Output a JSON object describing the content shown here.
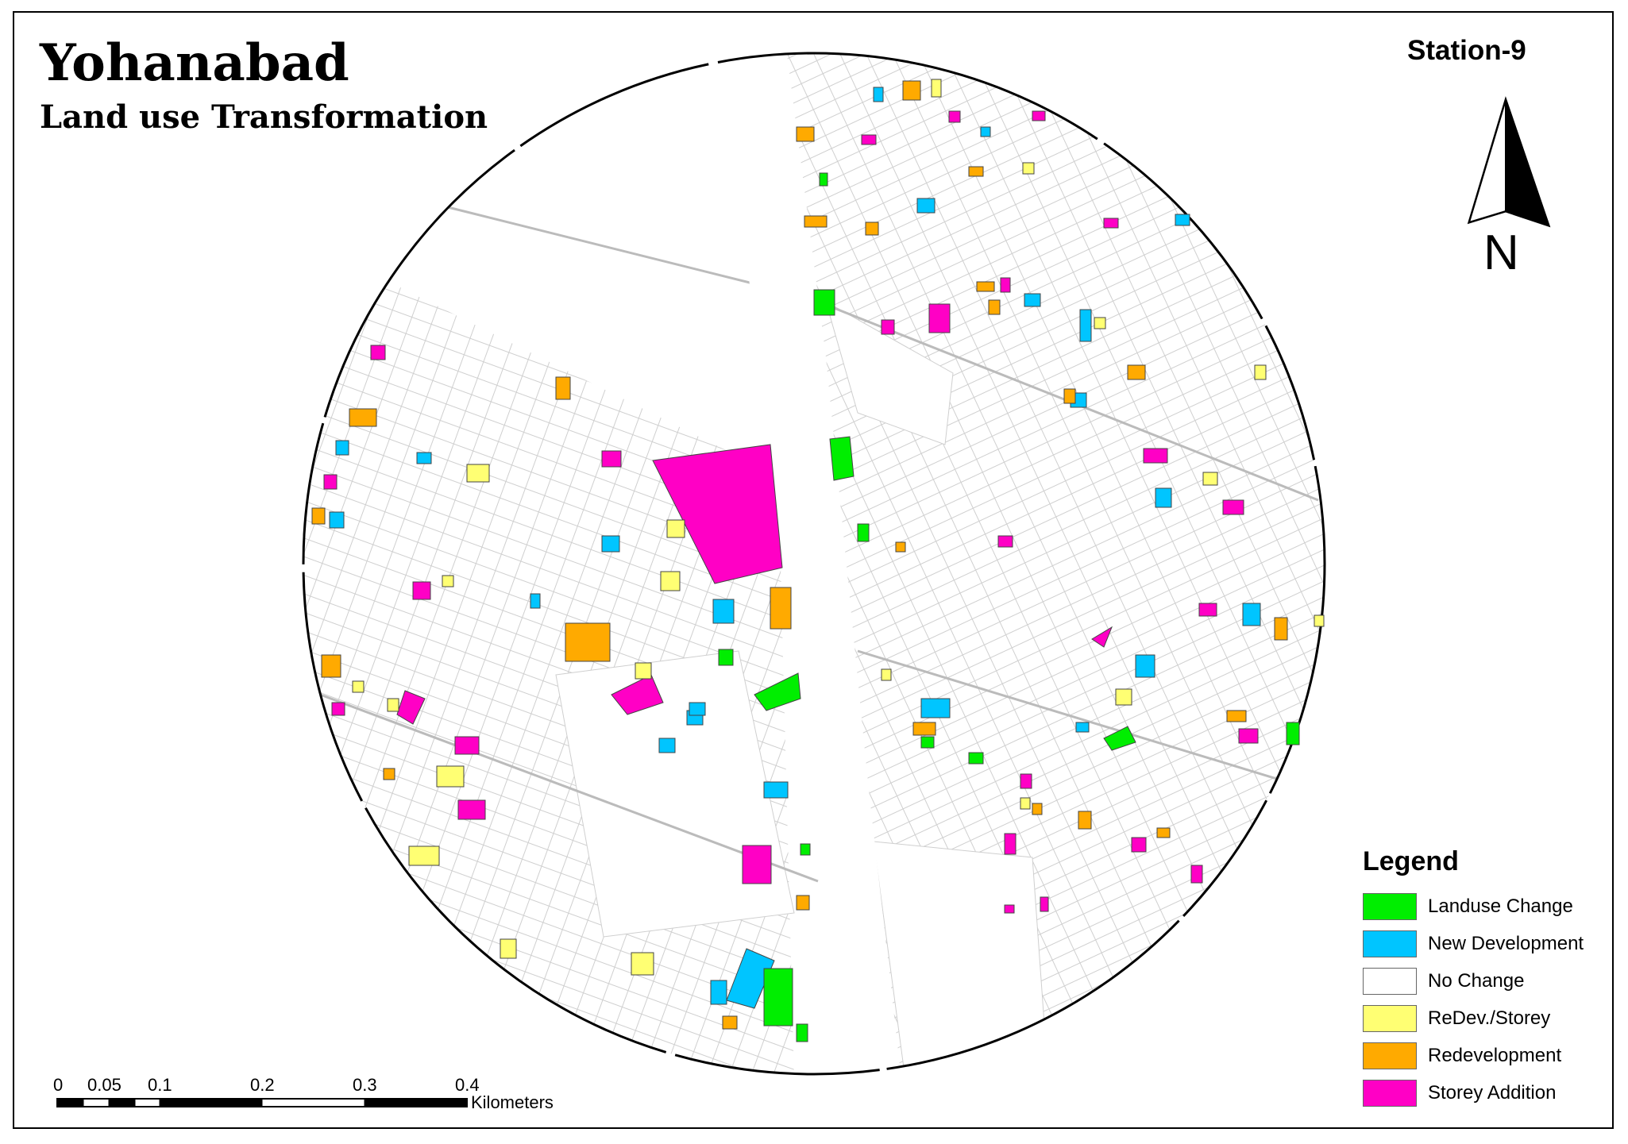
{
  "title": "Yohanabad",
  "subtitle": "Land use Transformation",
  "station": "Station-9",
  "north": "N",
  "legend": {
    "title": "Legend",
    "items": [
      {
        "label": "Landuse Change",
        "color": "#00ee00"
      },
      {
        "label": "New Development",
        "color": "#00c5ff"
      },
      {
        "label": "No Change",
        "color": "#ffffff"
      },
      {
        "label": "ReDev./Storey",
        "color": "#ffff73"
      },
      {
        "label": "Redevelopment",
        "color": "#ffaa00"
      },
      {
        "label": "Storey Addition",
        "color": "#ff00c5"
      }
    ]
  },
  "scale_bar": {
    "ticks": [
      "0",
      "0.05",
      "0.1",
      "0.2",
      "0.3",
      "0.4"
    ],
    "unit": "Kilometers"
  }
}
